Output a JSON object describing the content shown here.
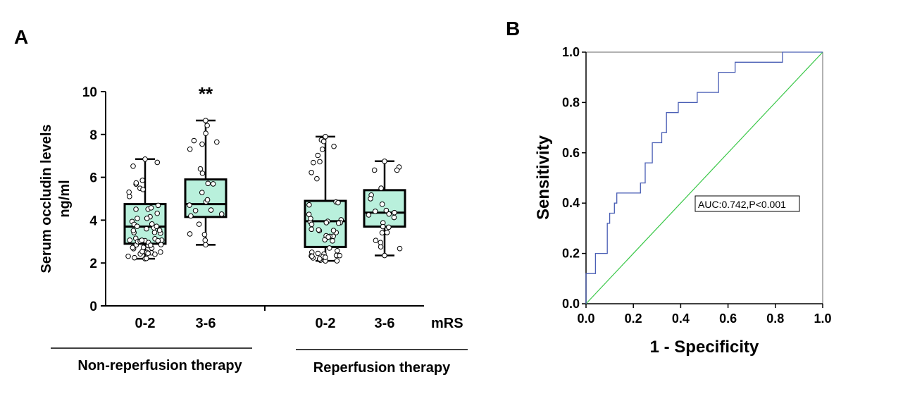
{
  "colors": {
    "box_fill": "#b9f0dc",
    "axis": "#000000",
    "roc_line": "#4a5fb5",
    "reference_line": "#3cc84a"
  },
  "chart_data": [
    {
      "type": "box",
      "panel_label": "A",
      "ylabel_line1": "Serum occludin levels",
      "ylabel_line2": "ng/ml",
      "ylim": [
        0,
        10
      ],
      "yticks": [
        "0",
        "2",
        "4",
        "6",
        "8",
        "10"
      ],
      "x_axis_title": "mRS",
      "groups": [
        {
          "name": "Non-reperfusion therapy",
          "categories": [
            "0-2",
            "3-6"
          ]
        },
        {
          "name": "Reperfusion therapy",
          "categories": [
            "0-2",
            "3-6"
          ]
        }
      ],
      "annotation": "**",
      "series": [
        {
          "group": "Non-reperfusion therapy",
          "category": "0-2",
          "min": 2.2,
          "q1": 2.9,
          "median": 3.7,
          "q3": 4.75,
          "max": 6.85,
          "n_points": 60
        },
        {
          "group": "Non-reperfusion therapy",
          "category": "3-6",
          "min": 2.85,
          "q1": 4.15,
          "median": 4.75,
          "q3": 5.9,
          "max": 8.65,
          "n_points": 24
        },
        {
          "group": "Reperfusion therapy",
          "category": "0-2",
          "min": 2.1,
          "q1": 2.75,
          "median": 3.95,
          "q3": 4.9,
          "max": 7.9,
          "n_points": 50
        },
        {
          "group": "Reperfusion therapy",
          "category": "3-6",
          "min": 2.35,
          "q1": 3.7,
          "median": 4.35,
          "q3": 5.4,
          "max": 6.75,
          "n_points": 24
        }
      ]
    },
    {
      "type": "line",
      "panel_label": "B",
      "title": "",
      "xlabel": "1 - Specificity",
      "ylabel": "Sensitivity",
      "xlim": [
        0,
        1
      ],
      "ylim": [
        0,
        1
      ],
      "xticks": [
        "0.0",
        "0.2",
        "0.4",
        "0.6",
        "0.8",
        "1.0"
      ],
      "yticks": [
        "0.0",
        "0.2",
        "0.4",
        "0.6",
        "0.8",
        "1.0"
      ],
      "annotation": "AUC:0.742,P<0.001",
      "series": [
        {
          "x": [
            0,
            0,
            0.04,
            0.04,
            0.09,
            0.09,
            0.1,
            0.1,
            0.12,
            0.12,
            0.13,
            0.13,
            0.23,
            0.23,
            0.25,
            0.25,
            0.28,
            0.28,
            0.32,
            0.32,
            0.34,
            0.34,
            0.39,
            0.39,
            0.47,
            0.47,
            0.56,
            0.56,
            0.63,
            0.63,
            0.83,
            0.83,
            1.0
          ],
          "y": [
            0,
            0.12,
            0.12,
            0.2,
            0.2,
            0.32,
            0.32,
            0.36,
            0.36,
            0.4,
            0.4,
            0.44,
            0.44,
            0.48,
            0.48,
            0.56,
            0.56,
            0.64,
            0.64,
            0.68,
            0.68,
            0.76,
            0.76,
            0.8,
            0.8,
            0.84,
            0.84,
            0.92,
            0.92,
            0.96,
            0.96,
            1.0,
            1.0
          ]
        },
        {
          "x": [
            0,
            1
          ],
          "y": [
            0,
            1
          ]
        }
      ]
    }
  ]
}
